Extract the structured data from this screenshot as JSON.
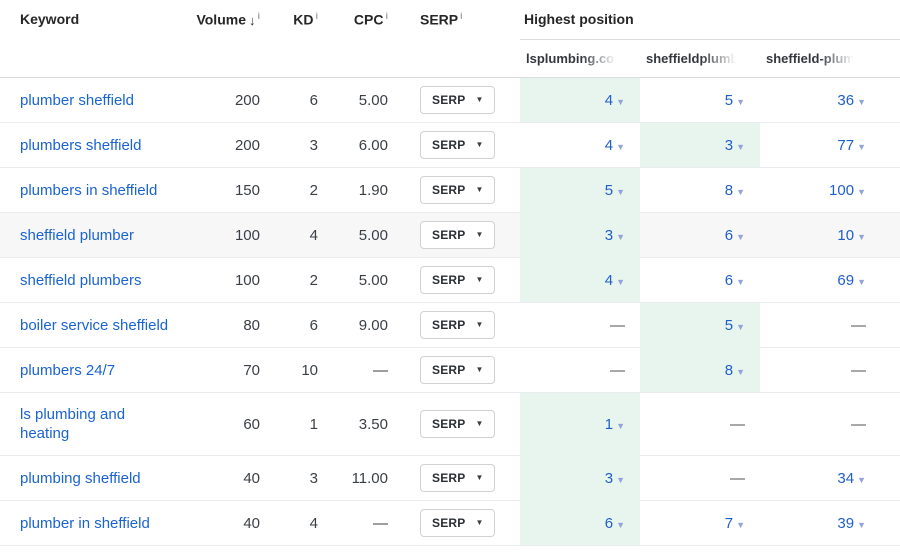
{
  "table": {
    "columns": {
      "keyword": "Keyword",
      "volume": "Volume",
      "kd": "KD",
      "cpc": "CPC",
      "serp": "SERP",
      "group": "Highest position",
      "domains": [
        "lsplumbing.co.",
        "sheffieldplumb",
        "sheffield-plum"
      ],
      "sort_icon": "↓",
      "info_icon": "i"
    },
    "serp_button_label": "SERP",
    "serp_caret": "▼",
    "pos_caret": "▼",
    "dash": "—",
    "colors": {
      "highlight_green": "#e8f4ee",
      "link_blue": "#1a63d2",
      "position_blue": "#1f5fc9",
      "shaded_row": "#f7f7f8",
      "caret_muted": "#93a4da"
    },
    "rows": [
      {
        "keyword": "plumber sheffield",
        "volume": "200",
        "kd": "6",
        "cpc": "5.00",
        "shaded": false,
        "positions": [
          {
            "value": "4",
            "green": true
          },
          {
            "value": "5",
            "green": false
          },
          {
            "value": "36",
            "green": false
          }
        ]
      },
      {
        "keyword": "plumbers sheffield",
        "volume": "200",
        "kd": "3",
        "cpc": "6.00",
        "shaded": false,
        "positions": [
          {
            "value": "4",
            "green": false
          },
          {
            "value": "3",
            "green": true
          },
          {
            "value": "77",
            "green": false
          }
        ]
      },
      {
        "keyword": "plumbers in sheffield",
        "volume": "150",
        "kd": "2",
        "cpc": "1.90",
        "shaded": false,
        "positions": [
          {
            "value": "5",
            "green": true
          },
          {
            "value": "8",
            "green": false
          },
          {
            "value": "100",
            "green": false
          }
        ]
      },
      {
        "keyword": "sheffield plumber",
        "volume": "100",
        "kd": "4",
        "cpc": "5.00",
        "shaded": true,
        "positions": [
          {
            "value": "3",
            "green": true
          },
          {
            "value": "6",
            "green": false
          },
          {
            "value": "10",
            "green": false
          }
        ]
      },
      {
        "keyword": "sheffield plumbers",
        "volume": "100",
        "kd": "2",
        "cpc": "5.00",
        "shaded": false,
        "positions": [
          {
            "value": "4",
            "green": true
          },
          {
            "value": "6",
            "green": false
          },
          {
            "value": "69",
            "green": false
          }
        ]
      },
      {
        "keyword": "boiler service sheffield",
        "volume": "80",
        "kd": "6",
        "cpc": "9.00",
        "shaded": false,
        "positions": [
          {
            "value": null,
            "green": false
          },
          {
            "value": "5",
            "green": true
          },
          {
            "value": null,
            "green": false
          }
        ]
      },
      {
        "keyword": "plumbers 24/7",
        "volume": "70",
        "kd": "10",
        "cpc": null,
        "shaded": false,
        "positions": [
          {
            "value": null,
            "green": false
          },
          {
            "value": "8",
            "green": true
          },
          {
            "value": null,
            "green": false
          }
        ]
      },
      {
        "keyword": "ls plumbing and heating",
        "volume": "60",
        "kd": "1",
        "cpc": "3.50",
        "shaded": false,
        "positions": [
          {
            "value": "1",
            "green": true
          },
          {
            "value": null,
            "green": false
          },
          {
            "value": null,
            "green": false
          }
        ]
      },
      {
        "keyword": "plumbing sheffield",
        "volume": "40",
        "kd": "3",
        "cpc": "11.00",
        "shaded": false,
        "positions": [
          {
            "value": "3",
            "green": true
          },
          {
            "value": null,
            "green": false
          },
          {
            "value": "34",
            "green": false
          }
        ]
      },
      {
        "keyword": "plumber in sheffield",
        "volume": "40",
        "kd": "4",
        "cpc": null,
        "shaded": false,
        "positions": [
          {
            "value": "6",
            "green": true
          },
          {
            "value": "7",
            "green": false
          },
          {
            "value": "39",
            "green": false
          }
        ]
      }
    ]
  }
}
